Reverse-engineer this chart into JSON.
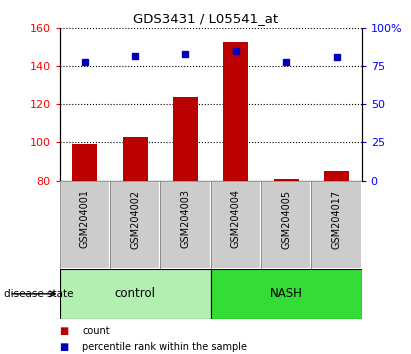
{
  "title": "GDS3431 / L05541_at",
  "samples": [
    "GSM204001",
    "GSM204002",
    "GSM204003",
    "GSM204004",
    "GSM204005",
    "GSM204017"
  ],
  "counts": [
    99,
    103,
    124,
    153,
    81,
    85
  ],
  "percentile_ranks_pct": [
    78,
    82,
    83,
    85,
    78,
    81
  ],
  "ylim_left": [
    80,
    160
  ],
  "ylim_right": [
    0,
    100
  ],
  "yticks_left": [
    80,
    100,
    120,
    140,
    160
  ],
  "yticks_right": [
    0,
    25,
    50,
    75,
    100
  ],
  "ytick_labels_right": [
    "0",
    "25",
    "50",
    "75",
    "100%"
  ],
  "groups": [
    {
      "label": "control",
      "n": 3,
      "color": "#b2f0b2"
    },
    {
      "label": "NASH",
      "n": 3,
      "color": "#33dd33"
    }
  ],
  "bar_color": "#bb0000",
  "dot_color": "#0000bb",
  "group_label": "disease state",
  "legend": [
    {
      "label": "count",
      "color": "#bb0000"
    },
    {
      "label": "percentile rank within the sample",
      "color": "#0000bb"
    }
  ],
  "bar_width": 0.5,
  "sample_box_color": "#cccccc",
  "plot_bg": "#ffffff"
}
